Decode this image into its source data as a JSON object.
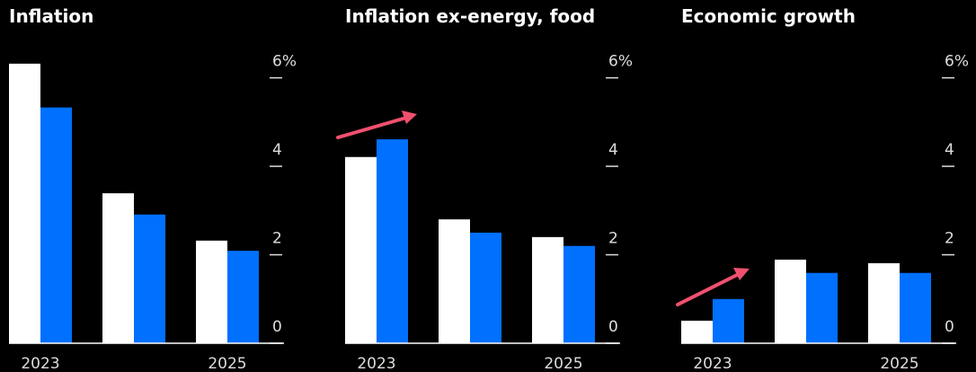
{
  "chart_data": [
    {
      "type": "bar",
      "title": "Inflation",
      "categories": [
        "2023",
        null,
        "2025"
      ],
      "series": [
        {
          "color": "#ffffff",
          "values": [
            6.32,
            3.39,
            2.32
          ]
        },
        {
          "color": "#0070ff",
          "values": [
            5.33,
            2.91,
            2.09
          ]
        }
      ],
      "ylim": [
        0,
        6.5
      ],
      "yticks": [
        0,
        2,
        4,
        {
          "value": 6,
          "label": "6%"
        }
      ]
    },
    {
      "type": "bar",
      "title": "Inflation ex-energy, food",
      "categories": [
        "2023",
        null,
        "2025"
      ],
      "series": [
        {
          "color": "#ffffff",
          "values": [
            4.21,
            2.8,
            2.4
          ]
        },
        {
          "color": "#0070ff",
          "values": [
            4.61,
            2.5,
            2.2
          ]
        }
      ],
      "ylim": [
        0,
        6.5
      ],
      "yticks": [
        0,
        2,
        4,
        {
          "value": 6,
          "label": "6%"
        }
      ]
    },
    {
      "type": "bar",
      "title": "Economic growth",
      "categories": [
        "2023",
        null,
        "2025"
      ],
      "series": [
        {
          "color": "#ffffff",
          "values": [
            0.51,
            1.89,
            1.81
          ]
        },
        {
          "color": "#0070ff",
          "values": [
            1.0,
            1.59,
            1.59
          ]
        }
      ],
      "ylim": [
        0,
        6.5
      ],
      "yticks": [
        0,
        2,
        4,
        {
          "value": 6,
          "label": "6%"
        }
      ]
    }
  ]
}
